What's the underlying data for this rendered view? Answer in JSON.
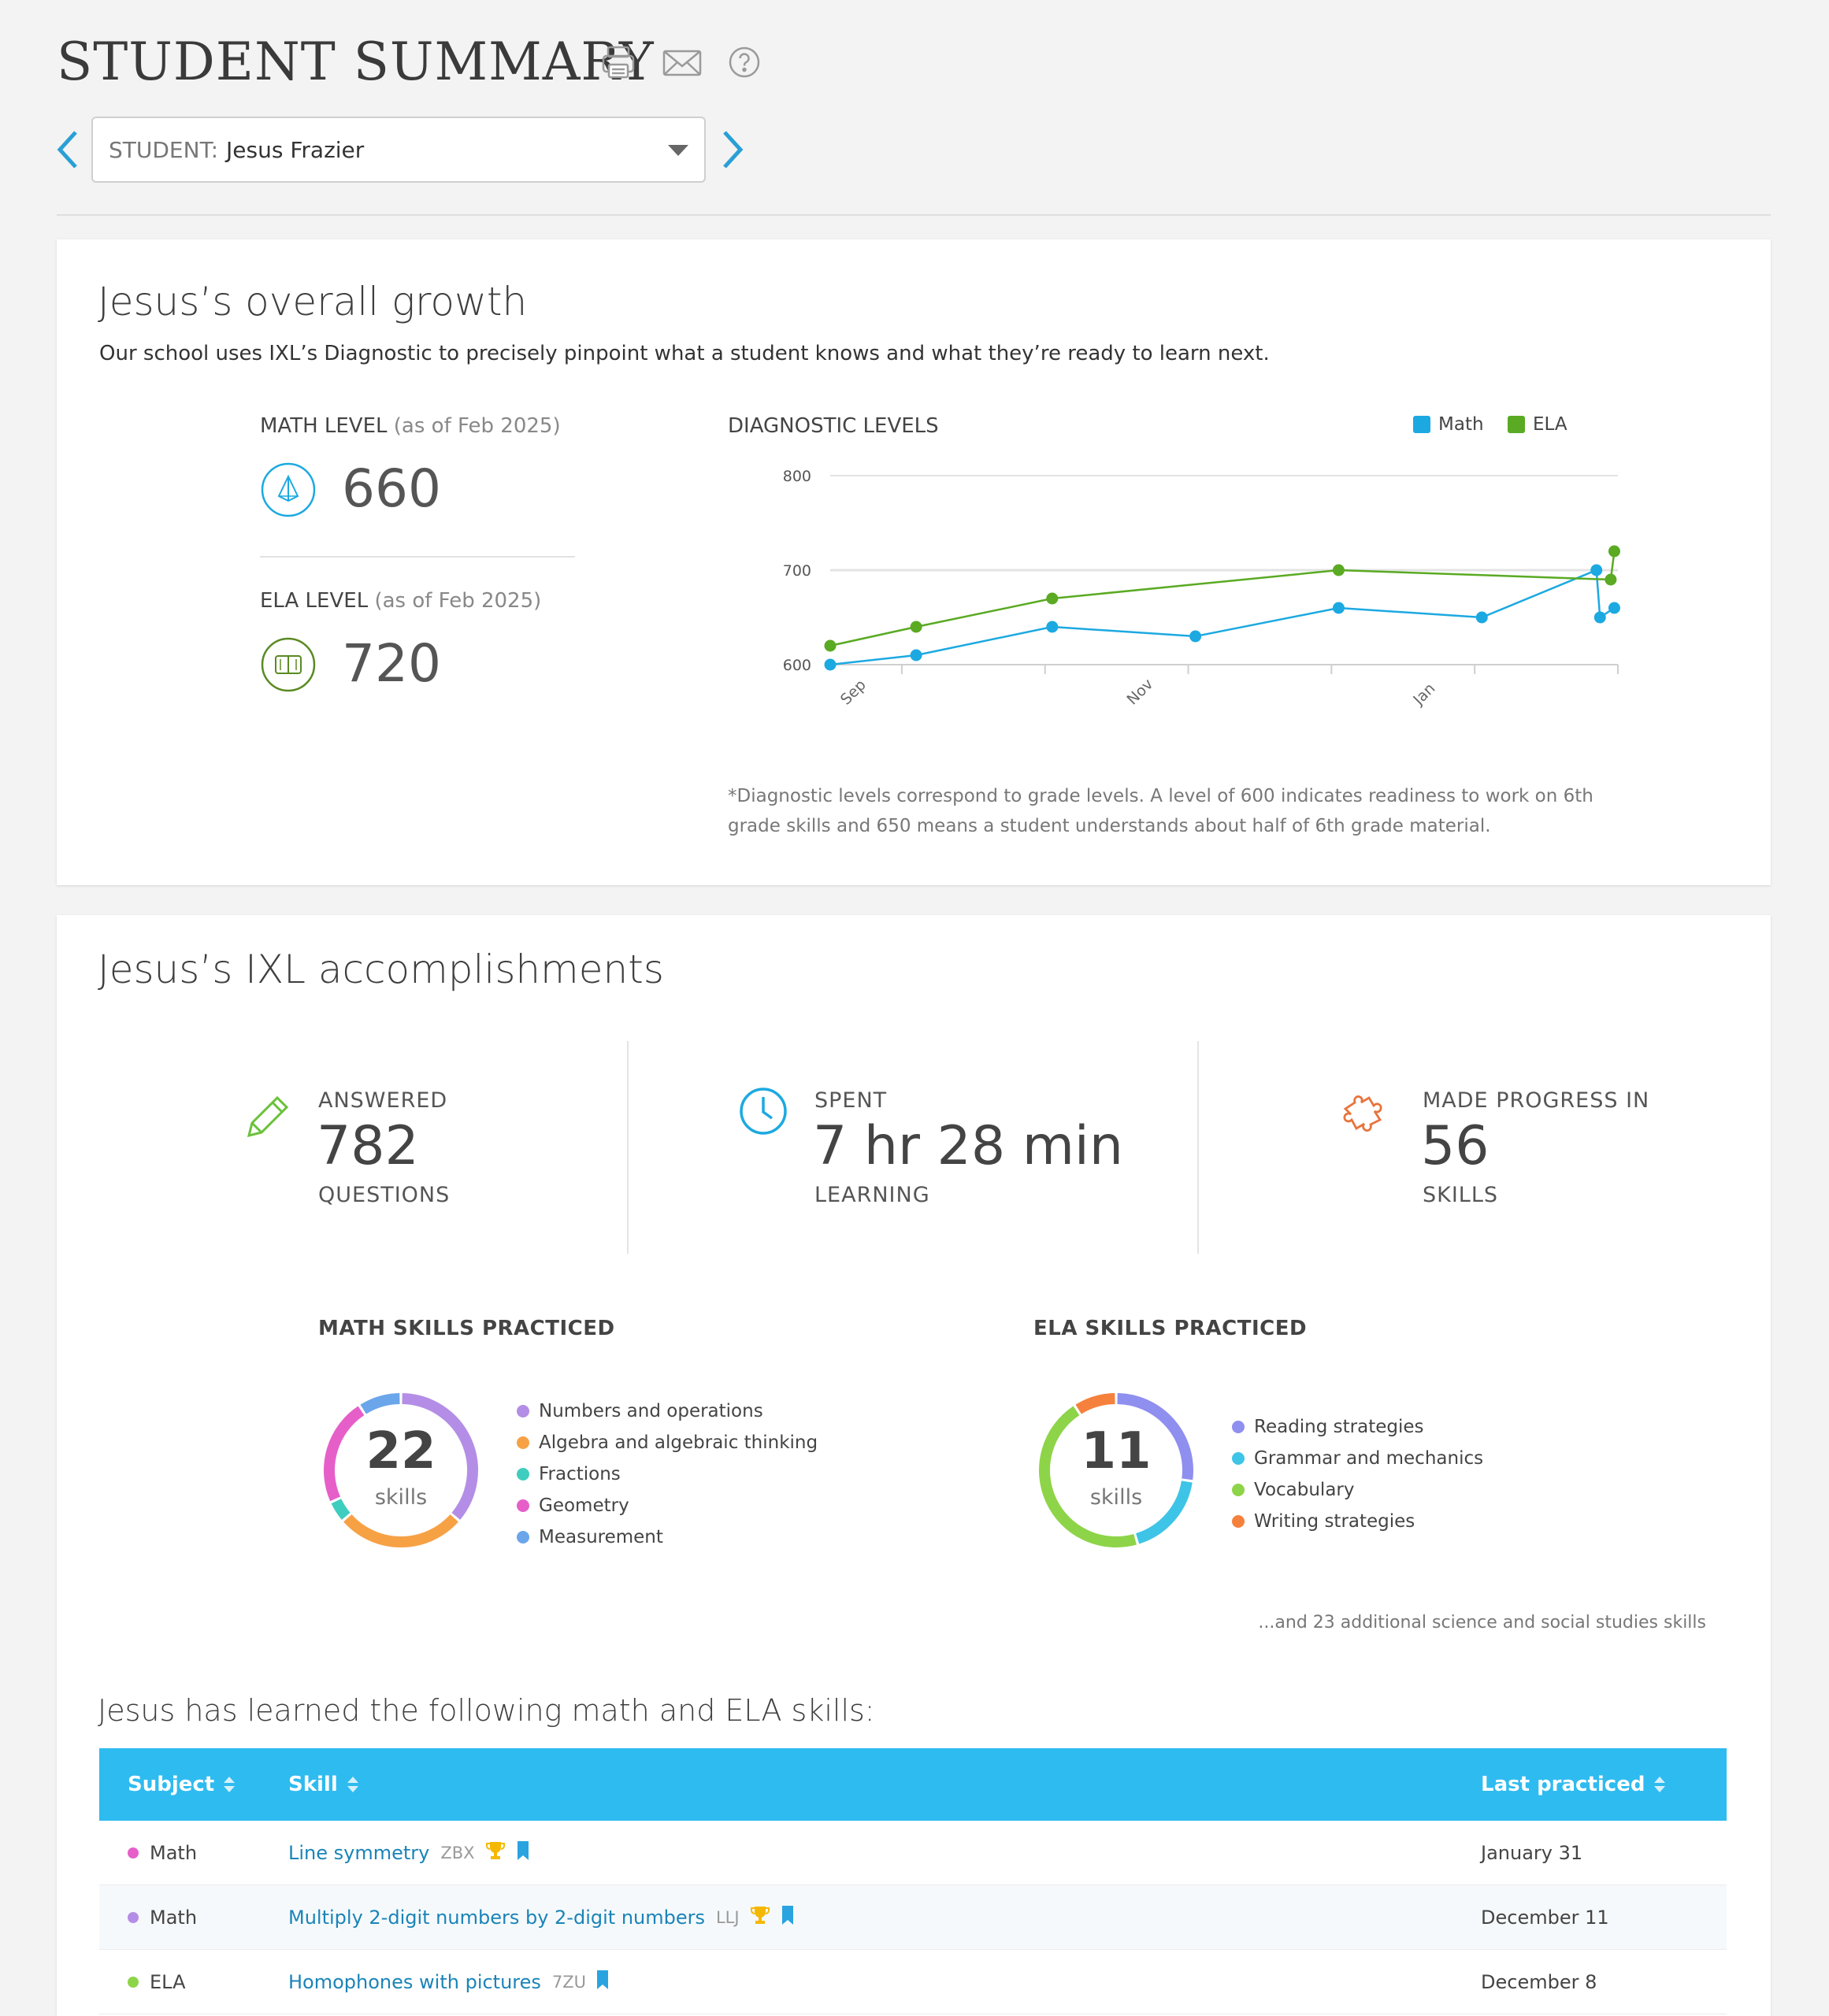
{
  "header": {
    "title": "STUDENT SUMMARY",
    "student_label": "STUDENT:",
    "student_name": "Jesus Frazier"
  },
  "growth": {
    "title": "Jesus’s overall growth",
    "subtitle": "Our school uses IXL’s Diagnostic to precisely pinpoint what a student knows and what they’re ready to learn next.",
    "math_label": "MATH LEVEL",
    "math_asof": "(as of Feb 2025)",
    "math_value": "660",
    "ela_label": "ELA LEVEL",
    "ela_asof": "(as of Feb 2025)",
    "ela_value": "720",
    "chart_title": "DIAGNOSTIC LEVELS",
    "note": "*Diagnostic levels correspond to grade levels. A level of 600 indicates readiness to work on 6th grade skills and 650 means a student understands about half of 6th grade material."
  },
  "chart_data": {
    "type": "line",
    "title": "DIAGNOSTIC LEVELS",
    "ylim": [
      600,
      800
    ],
    "yticks": [
      600,
      700,
      800
    ],
    "xlim": [
      0,
      11
    ],
    "xtick_labels": [
      {
        "label": "Sep",
        "x": 1
      },
      {
        "label": "Nov",
        "x": 5
      },
      {
        "label": "Jan",
        "x": 9
      }
    ],
    "grid": true,
    "legend_position": "top-right",
    "series": [
      {
        "name": "Math",
        "color": "#1ca9e1",
        "points": [
          [
            0,
            600
          ],
          [
            1.2,
            610
          ],
          [
            3.1,
            640
          ],
          [
            5.1,
            630
          ],
          [
            7.1,
            660
          ],
          [
            9.1,
            650
          ],
          [
            10.7,
            700
          ],
          [
            10.75,
            650
          ],
          [
            10.95,
            660
          ]
        ]
      },
      {
        "name": "ELA",
        "color": "#5aaa23",
        "points": [
          [
            0,
            620
          ],
          [
            1.2,
            640
          ],
          [
            3.1,
            670
          ],
          [
            7.1,
            700
          ],
          [
            10.9,
            690
          ],
          [
            10.95,
            720
          ]
        ]
      }
    ]
  },
  "accomplishments": {
    "title": "Jesus’s IXL accomplishments",
    "answered_top": "ANSWERED",
    "answered_value": "782",
    "answered_bottom": "QUESTIONS",
    "spent_top": "SPENT",
    "spent_value": "7 hr 28 min",
    "spent_bottom": "LEARNING",
    "progress_top": "MADE PROGRESS IN",
    "progress_value": "56",
    "progress_bottom": "SKILLS",
    "math_heading": "MATH SKILLS PRACTICED",
    "math_count": "22",
    "math_unit": "skills",
    "math_legend": [
      {
        "label": "Numbers and operations",
        "color": "#b48ee6",
        "value": 8
      },
      {
        "label": "Algebra and algebraic thinking",
        "color": "#f7a145",
        "value": 6
      },
      {
        "label": "Fractions",
        "color": "#3fcdbf",
        "value": 1
      },
      {
        "label": "Geometry",
        "color": "#e65fc9",
        "value": 5
      },
      {
        "label": "Measurement",
        "color": "#6ba6ea",
        "value": 2
      }
    ],
    "ela_heading": "ELA SKILLS PRACTICED",
    "ela_count": "11",
    "ela_unit": "skills",
    "ela_legend": [
      {
        "label": "Reading strategies",
        "color": "#8f8ff0",
        "value": 3
      },
      {
        "label": "Grammar and mechanics",
        "color": "#3ec4e6",
        "value": 2
      },
      {
        "label": "Vocabulary",
        "color": "#8ed448",
        "value": 5
      },
      {
        "label": "Writing strategies",
        "color": "#f5813d",
        "value": 1
      }
    ],
    "more_text": "...and 23 additional science and social studies skills",
    "learned_title": "Jesus has learned the following math and ELA skills:"
  },
  "table": {
    "columns": [
      "Subject",
      "Skill",
      "Last practiced"
    ],
    "rows": [
      {
        "subject": "Math",
        "dot": "#e65fc9",
        "skill": "Line symmetry",
        "code": "ZBX",
        "trophy": true,
        "bookmark": true,
        "date": "January 31"
      },
      {
        "subject": "Math",
        "dot": "#b48ee6",
        "skill": "Multiply 2-digit numbers by 2-digit numbers",
        "code": "LLJ",
        "trophy": true,
        "bookmark": true,
        "date": "December 11"
      },
      {
        "subject": "ELA",
        "dot": "#8ed448",
        "skill": "Homophones with pictures",
        "code": "7ZU",
        "trophy": false,
        "bookmark": true,
        "date": "December 8"
      }
    ]
  },
  "colors": {
    "math": "#1ca9e1",
    "ela": "#5aaa23",
    "table_header": "#2ebbf0",
    "link": "#1a84b8"
  }
}
